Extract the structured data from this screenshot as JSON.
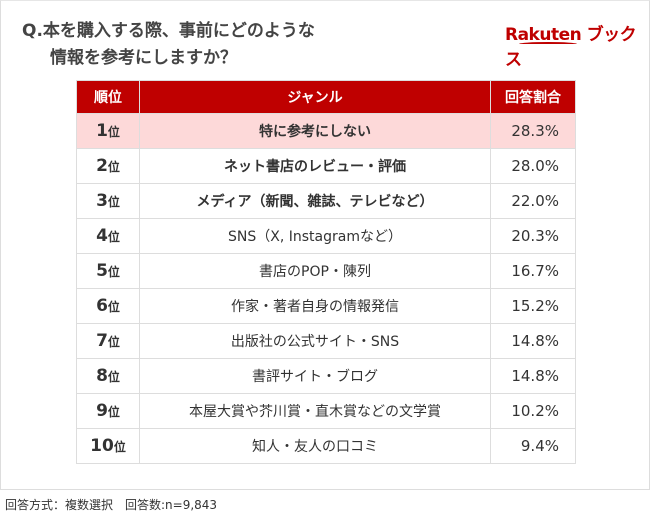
{
  "question": {
    "line1": "Q.本を購入する際、事前にどのような",
    "line2": "情報を参考にしますか？"
  },
  "logo": "Rakuten ブックス",
  "table": {
    "headers": [
      "順位",
      "ジャンル",
      "回答割合"
    ],
    "rows": [
      {
        "rank": "1",
        "suffix": "位",
        "genre": "特に参考にしない",
        "pct": "28.3%"
      },
      {
        "rank": "2",
        "suffix": "位",
        "genre": "ネット書店のレビュー・評価",
        "pct": "28.0%"
      },
      {
        "rank": "3",
        "suffix": "位",
        "genre": "メディア（新聞、雑誌、テレビなど）",
        "pct": "22.0%"
      },
      {
        "rank": "4",
        "suffix": "位",
        "genre": "SNS（X, Instagramなど）",
        "pct": "20.3%"
      },
      {
        "rank": "5",
        "suffix": "位",
        "genre": "書店のPOP・陳列",
        "pct": "16.7%"
      },
      {
        "rank": "6",
        "suffix": "位",
        "genre": "作家・著者自身の情報発信",
        "pct": "15.2%"
      },
      {
        "rank": "7",
        "suffix": "位",
        "genre": "出版社の公式サイト・SNS",
        "pct": "14.8%"
      },
      {
        "rank": "8",
        "suffix": "位",
        "genre": "書評サイト・ブログ",
        "pct": "14.8%"
      },
      {
        "rank": "9",
        "suffix": "位",
        "genre": "本屋大賞や芥川賞・直木賞などの文学賞",
        "pct": "10.2%"
      },
      {
        "rank": "10",
        "suffix": "位",
        "genre": "知人・友人の口コミ",
        "pct": "9.4%"
      }
    ]
  },
  "footer": "回答方式：複数選択　回答数:n=9,843",
  "colors": {
    "header": "#bf0000",
    "highlight": "#fdd9d9"
  }
}
